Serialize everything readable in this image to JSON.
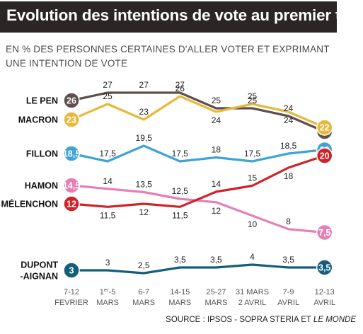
{
  "title": "Evolution des intentions de vote au premier tour",
  "subtitle_line1": "EN % DES PERSONNES CERTAINES D'ALLER VOTER ET EXPRIMANT",
  "subtitle_line2": "UNE INTENTION DE VOTE",
  "source_prefix": "SOURCE : IPSOS - SOPRA STERIA ET ",
  "source_italic": "LE MONDE",
  "chart_data": {
    "type": "line",
    "categories": [
      [
        "7-12",
        "FEVRIER"
      ],
      [
        "1er-5",
        "MARS"
      ],
      [
        "6-7",
        "MARS"
      ],
      [
        "14-15",
        "MARS"
      ],
      [
        "25-27",
        "MARS"
      ],
      [
        "31 MARS",
        "2 AVRIL"
      ],
      [
        "7-9",
        "AVRIL"
      ],
      [
        "12-13",
        "AVRIL"
      ]
    ],
    "series": [
      {
        "name": "LE PEN",
        "color": "#5e4e4c",
        "values": [
          26,
          27,
          27,
          27,
          25,
          25,
          24,
          22
        ],
        "labels": [
          "26",
          "27",
          "27",
          "27",
          "25",
          "25",
          "24",
          "22"
        ]
      },
      {
        "name": "MACRON",
        "color": "#e8b83a",
        "values": [
          23,
          25,
          23,
          26,
          24,
          25,
          24,
          22
        ],
        "labels": [
          "23",
          "25",
          "23",
          "26",
          "24",
          "25",
          "24",
          "22"
        ]
      },
      {
        "name": "FILLON",
        "color": "#3fa3d6",
        "values": [
          18.5,
          17.5,
          19.5,
          17.5,
          18,
          17.5,
          18.5,
          19
        ],
        "labels": [
          "18,5",
          "17,5",
          "19,5",
          "17,5",
          "18",
          "17,5",
          "18,5",
          "19"
        ]
      },
      {
        "name": "HAMON",
        "color": "#e57fb5",
        "values": [
          14.5,
          14,
          13.5,
          12.5,
          12,
          10,
          8,
          7.5
        ],
        "labels": [
          "14,5",
          "14",
          "13,5",
          "12,5",
          "12",
          "10",
          "8",
          "7,5"
        ]
      },
      {
        "name": "MÉLENCHON",
        "color": "#cf2229",
        "values": [
          12,
          11.5,
          12,
          11.5,
          14,
          15,
          18,
          20
        ],
        "labels": [
          "12",
          "11,5",
          "12",
          "11,5",
          "14",
          "15",
          "18",
          "20"
        ]
      },
      {
        "name": "DUPONT\n-AIGNAN",
        "color": "#135e7d",
        "values": [
          3,
          3,
          2.5,
          3.5,
          3.5,
          4,
          3.5,
          3.5
        ],
        "labels": [
          "3",
          "3",
          "2,5",
          "3,5",
          "3,5",
          "4",
          "3,5",
          "3,5"
        ]
      }
    ],
    "grid": false,
    "legend": "left"
  }
}
